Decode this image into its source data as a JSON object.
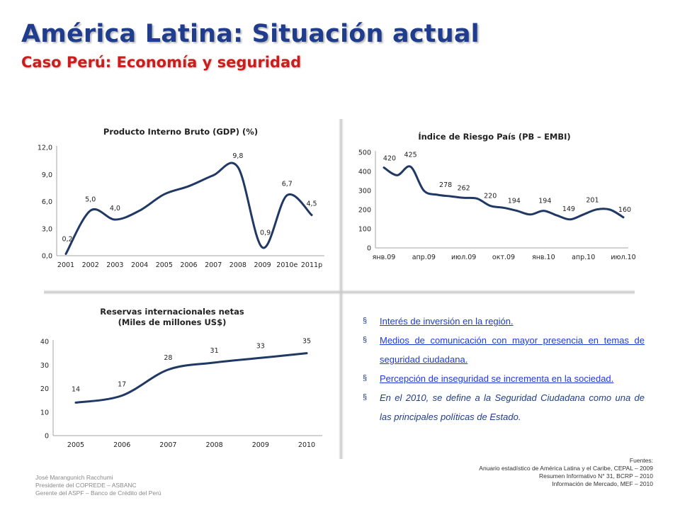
{
  "header": {
    "title": "América Latina: Situación actual",
    "subtitle": "Caso Perú: Economía y seguridad"
  },
  "chart_data": [
    {
      "type": "line",
      "title": "Producto Interno Bruto (GDP) (%)",
      "categories": [
        "2001",
        "2002",
        "2003",
        "2004",
        "2005",
        "2006",
        "2007",
        "2008",
        "2009",
        "2010e",
        "2011p"
      ],
      "values": [
        0.2,
        5.0,
        4.0,
        5.0,
        6.8,
        7.7,
        8.9,
        9.8,
        0.9,
        6.7,
        4.5
      ],
      "data_labels": [
        {
          "index": 0,
          "text": "0,2"
        },
        {
          "index": 1,
          "text": "5,0"
        },
        {
          "index": 2,
          "text": "4,0"
        },
        {
          "index": 7,
          "text": "9,8"
        },
        {
          "index": 8,
          "text": "0,9"
        },
        {
          "index": 9,
          "text": "6,7"
        },
        {
          "index": 10,
          "text": "4,5"
        }
      ],
      "y_ticks": [
        "0,0",
        "3,0",
        "6,0",
        "9,0",
        "12,0"
      ],
      "ylim": [
        0,
        12
      ],
      "grid": false,
      "color": "#1f3864"
    },
    {
      "type": "line",
      "title": "Índice de Riesgo País (PB – EMBI)",
      "x_tick_labels": [
        "янв.09",
        "апр.09",
        "июл.09",
        "окт.09",
        "янв.10",
        "апр.10",
        "июл.10"
      ],
      "x_tick_positions": [
        0,
        3,
        6,
        9,
        12,
        15,
        18
      ],
      "values": [
        420,
        380,
        425,
        300,
        278,
        270,
        262,
        258,
        220,
        210,
        194,
        175,
        194,
        170,
        149,
        175,
        201,
        200,
        160
      ],
      "data_labels": [
        {
          "index": 0,
          "text": "420"
        },
        {
          "index": 2,
          "text": "425"
        },
        {
          "index": 4,
          "text": "278"
        },
        {
          "index": 6,
          "text": "262"
        },
        {
          "index": 8,
          "text": "220"
        },
        {
          "index": 10,
          "text": "194"
        },
        {
          "index": 12,
          "text": "194"
        },
        {
          "index": 14,
          "text": "149"
        },
        {
          "index": 16,
          "text": "201"
        },
        {
          "index": 18,
          "text": "160"
        }
      ],
      "y_ticks": [
        "0",
        "100",
        "200",
        "300",
        "400",
        "500"
      ],
      "ylim": [
        0,
        500
      ],
      "grid": false,
      "color": "#1f3864"
    },
    {
      "type": "line",
      "title": "Reservas internacionales netas",
      "subtitle": "(Miles de millones US$)",
      "categories": [
        "2005",
        "2006",
        "2007",
        "2008",
        "2009",
        "2010"
      ],
      "values": [
        14,
        17,
        28,
        31,
        33,
        35
      ],
      "data_labels": [
        {
          "index": 0,
          "text": "14"
        },
        {
          "index": 1,
          "text": "17"
        },
        {
          "index": 2,
          "text": "28"
        },
        {
          "index": 3,
          "text": "31"
        },
        {
          "index": 4,
          "text": "33"
        },
        {
          "index": 5,
          "text": "35"
        }
      ],
      "y_ticks": [
        "0",
        "10",
        "20",
        "30",
        "40"
      ],
      "ylim": [
        0,
        40
      ],
      "grid": false,
      "color": "#1f3864"
    }
  ],
  "bullets": [
    {
      "text": "Interés de inversión en la región.",
      "link": true
    },
    {
      "text": "Medios de comunicación con mayor presencia en temas de seguridad ciudadana.",
      "link": true
    },
    {
      "text": "Percepción de inseguridad se incrementa en la sociedad.",
      "link": true
    },
    {
      "text": "En el 2010, se define a la Seguridad Ciudadana como una de las principales políticas de Estado.",
      "link": false
    }
  ],
  "bullet_marker": "§",
  "author": {
    "name": "José Marangunich Racchumi",
    "line1": "Presidente del COPREDE – ASBANC",
    "line2": "Gerente del ASPF – Banco de Crédito del Perú"
  },
  "sources": {
    "heading": "Fuentes:",
    "items": [
      "Anuario estadístico de América Latina y el Caribe, CEPAL – 2009",
      "Resumen Informativo N° 31, BCRP – 2010",
      "Información de Mercado, MEF – 2010"
    ]
  }
}
